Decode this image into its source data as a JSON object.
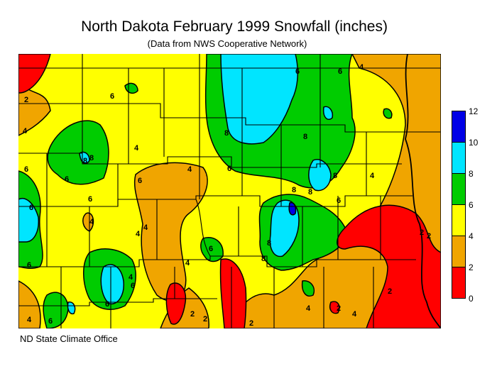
{
  "title": "North Dakota February 1999 Snowfall (inches)",
  "subtitle": "(Data from NWS Cooperative Network)",
  "credit": "ND State Climate Office",
  "legend": {
    "bands": [
      {
        "from": 10,
        "to": 12,
        "color": "#0000e6"
      },
      {
        "from": 8,
        "to": 10,
        "color": "#00e5ff"
      },
      {
        "from": 6,
        "to": 8,
        "color": "#00cc00"
      },
      {
        "from": 4,
        "to": 6,
        "color": "#ffff00"
      },
      {
        "from": 2,
        "to": 4,
        "color": "#f0a500"
      },
      {
        "from": 0,
        "to": 2,
        "color": "#ff0000"
      }
    ],
    "labels": [
      "12",
      "10",
      "8",
      "6",
      "4",
      "2",
      "0"
    ]
  },
  "contour_labels": [
    "2",
    "4",
    "6",
    "8",
    "6",
    "8",
    "4",
    "6",
    "8",
    "6",
    "4",
    "2",
    "6",
    "8",
    "6",
    "4",
    "6",
    "4",
    "8",
    "6",
    "4",
    "2",
    "6",
    "8",
    "6",
    "4",
    "6",
    "8",
    "4",
    "2",
    "6",
    "4",
    "2",
    "2",
    "4",
    "2",
    "8",
    "4",
    "6",
    "4",
    "6",
    "8",
    "6",
    "4",
    "2"
  ]
}
